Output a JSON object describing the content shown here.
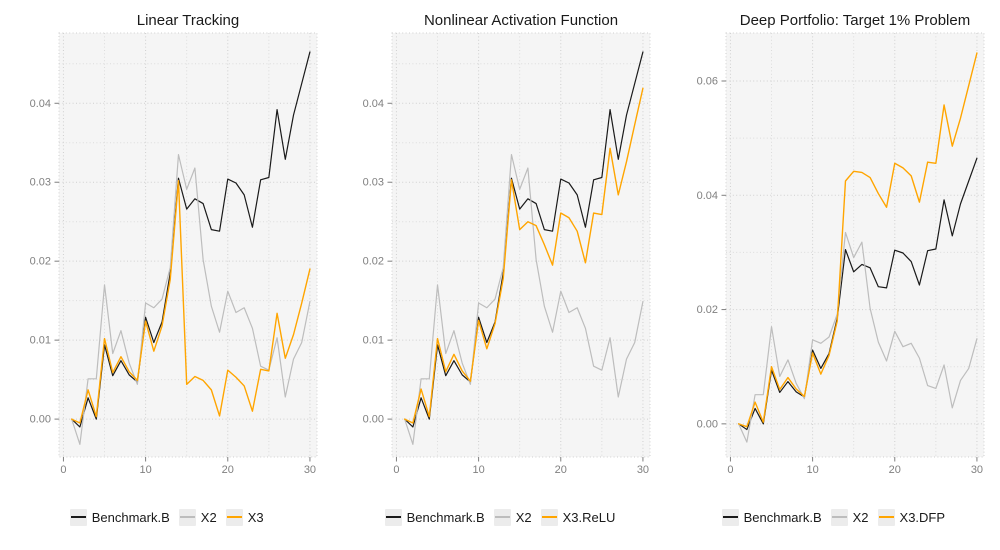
{
  "page": {
    "background": "#ffffff",
    "legend_position": "bottom"
  },
  "palette": {
    "benchmark": "#1a1a1a",
    "x2": "#bdbdbd",
    "x3": "#ffa500",
    "panel_background": "#f5f5f5",
    "grid_major": "#cfcfcf",
    "grid_minor": "#dcdcdc",
    "tick_text": "#808080"
  },
  "chart_data": [
    {
      "type": "line",
      "title": "Linear Tracking",
      "xlabel": "",
      "ylabel": "",
      "grid": "dotted",
      "legend_position": "bottom",
      "x": {
        "start": 1,
        "end": 30,
        "step": 1
      },
      "xlim": [
        -0.54,
        30.86
      ],
      "ylim": [
        -0.0048,
        0.0489
      ],
      "x_major": [
        0,
        10,
        20,
        30
      ],
      "x_labels": [
        "0",
        "10",
        "20",
        "30"
      ],
      "x_minor": [
        5,
        15,
        25
      ],
      "y_major": [
        0,
        0.01,
        0.02,
        0.03,
        0.04
      ],
      "y_labels": [
        "0.00",
        "0.01",
        "0.02",
        "0.03",
        "0.04"
      ],
      "y_minor": [
        0.005,
        0.015,
        0.025,
        0.035,
        0.045
      ],
      "series": [
        {
          "name": "Benchmark.B",
          "color": "#1a1a1a",
          "values": [
            0.0,
            -0.001,
            0.0027,
            0.0,
            0.0094,
            0.0055,
            0.0074,
            0.0056,
            0.0047,
            0.0129,
            0.0097,
            0.0123,
            0.0185,
            0.0305,
            0.0266,
            0.0279,
            0.0273,
            0.024,
            0.0238,
            0.0304,
            0.0299,
            0.0284,
            0.0243,
            0.0303,
            0.0306,
            0.0392,
            0.0329,
            0.0385,
            0.0425,
            0.0465
          ]
        },
        {
          "name": "X2",
          "color": "#bdbdbd",
          "values": [
            0.0,
            -0.0032,
            0.0051,
            0.0051,
            0.017,
            0.0083,
            0.0112,
            0.0071,
            0.0044,
            0.0147,
            0.0141,
            0.0152,
            0.0192,
            0.0335,
            0.0291,
            0.0318,
            0.0202,
            0.0143,
            0.011,
            0.0162,
            0.0135,
            0.0141,
            0.0115,
            0.0067,
            0.0062,
            0.0103,
            0.0028,
            0.0076,
            0.0097,
            0.0149
          ]
        },
        {
          "name": "X3",
          "color": "#ffa500",
          "values": [
            0.0,
            -0.0005,
            0.0037,
            0.0003,
            0.0102,
            0.0059,
            0.0079,
            0.006,
            0.0049,
            0.0124,
            0.0086,
            0.0118,
            0.0177,
            0.0302,
            0.0044,
            0.0054,
            0.0049,
            0.0037,
            0.0004,
            0.0062,
            0.0053,
            0.0042,
            0.001,
            0.0063,
            0.0061,
            0.0134,
            0.0077,
            0.0107,
            0.0147,
            0.019
          ]
        }
      ]
    },
    {
      "type": "line",
      "title": "Nonlinear Activation Function",
      "xlabel": "",
      "ylabel": "",
      "grid": "dotted",
      "legend_position": "bottom",
      "x": {
        "start": 1,
        "end": 30,
        "step": 1
      },
      "xlim": [
        -0.54,
        30.86
      ],
      "ylim": [
        -0.0048,
        0.0489
      ],
      "x_major": [
        0,
        10,
        20,
        30
      ],
      "x_labels": [
        "0",
        "10",
        "20",
        "30"
      ],
      "x_minor": [
        5,
        15,
        25
      ],
      "y_major": [
        0,
        0.01,
        0.02,
        0.03,
        0.04
      ],
      "y_labels": [
        "0.00",
        "0.01",
        "0.02",
        "0.03",
        "0.04"
      ],
      "y_minor": [
        0.005,
        0.015,
        0.025,
        0.035,
        0.045
      ],
      "series": [
        {
          "name": "Benchmark.B",
          "color": "#1a1a1a",
          "values": [
            0.0,
            -0.001,
            0.0027,
            0.0,
            0.0094,
            0.0055,
            0.0074,
            0.0056,
            0.0047,
            0.0129,
            0.0097,
            0.0123,
            0.0185,
            0.0305,
            0.0266,
            0.0279,
            0.0273,
            0.024,
            0.0238,
            0.0304,
            0.0299,
            0.0284,
            0.0243,
            0.0303,
            0.0306,
            0.0392,
            0.0329,
            0.0385,
            0.0425,
            0.0465
          ]
        },
        {
          "name": "X2",
          "color": "#bdbdbd",
          "values": [
            0.0,
            -0.0032,
            0.0051,
            0.0051,
            0.017,
            0.0083,
            0.0112,
            0.0071,
            0.0044,
            0.0147,
            0.0141,
            0.0152,
            0.0192,
            0.0335,
            0.0291,
            0.0318,
            0.0202,
            0.0143,
            0.011,
            0.0162,
            0.0135,
            0.0141,
            0.0115,
            0.0067,
            0.0062,
            0.0103,
            0.0028,
            0.0076,
            0.0097,
            0.0149
          ]
        },
        {
          "name": "X3.ReLU",
          "color": "#ffa500",
          "values": [
            0.0,
            -0.0005,
            0.0038,
            0.0003,
            0.0102,
            0.006,
            0.0082,
            0.0061,
            0.0048,
            0.0125,
            0.0089,
            0.0121,
            0.0178,
            0.0303,
            0.024,
            0.025,
            0.0245,
            0.0221,
            0.0195,
            0.0261,
            0.0255,
            0.0238,
            0.0198,
            0.0261,
            0.0259,
            0.0343,
            0.0284,
            0.0326,
            0.0373,
            0.0419
          ]
        }
      ]
    },
    {
      "type": "line",
      "title": "Deep Portfolio: Target 1% Problem",
      "xlabel": "",
      "ylabel": "",
      "grid": "dotted",
      "legend_position": "bottom",
      "x": {
        "start": 1,
        "end": 30,
        "step": 1
      },
      "xlim": [
        -0.54,
        30.86
      ],
      "ylim": [
        -0.0058,
        0.0684
      ],
      "x_major": [
        0,
        10,
        20,
        30
      ],
      "x_labels": [
        "0",
        "10",
        "20",
        "30"
      ],
      "x_minor": [
        5,
        15,
        25
      ],
      "y_major": [
        0,
        0.02,
        0.04,
        0.06
      ],
      "y_labels": [
        "0.00",
        "0.02",
        "0.04",
        "0.06"
      ],
      "y_minor": [
        0.01,
        0.03,
        0.05
      ],
      "series": [
        {
          "name": "Benchmark.B",
          "color": "#1a1a1a",
          "values": [
            0.0,
            -0.001,
            0.0027,
            0.0,
            0.0094,
            0.0055,
            0.0074,
            0.0056,
            0.0047,
            0.0129,
            0.0097,
            0.0123,
            0.0185,
            0.0305,
            0.0266,
            0.0279,
            0.0273,
            0.024,
            0.0238,
            0.0304,
            0.0299,
            0.0284,
            0.0243,
            0.0303,
            0.0306,
            0.0392,
            0.0329,
            0.0385,
            0.0425,
            0.0465
          ]
        },
        {
          "name": "X2",
          "color": "#bdbdbd",
          "values": [
            0.0,
            -0.0032,
            0.0051,
            0.0051,
            0.017,
            0.0083,
            0.0112,
            0.0071,
            0.0044,
            0.0147,
            0.0141,
            0.0152,
            0.0192,
            0.0335,
            0.0291,
            0.0318,
            0.0202,
            0.0143,
            0.011,
            0.0162,
            0.0135,
            0.0141,
            0.0115,
            0.0067,
            0.0062,
            0.0103,
            0.0028,
            0.0076,
            0.0097,
            0.0149
          ]
        },
        {
          "name": "X3.DFP",
          "color": "#ffa500",
          "values": [
            0.0,
            -0.0005,
            0.0038,
            0.0003,
            0.01,
            0.006,
            0.0081,
            0.0061,
            0.0048,
            0.0124,
            0.0087,
            0.012,
            0.018,
            0.0425,
            0.0442,
            0.044,
            0.0431,
            0.0403,
            0.0379,
            0.0456,
            0.0448,
            0.0434,
            0.0388,
            0.0458,
            0.0456,
            0.0558,
            0.0486,
            0.0535,
            0.0592,
            0.0649
          ]
        }
      ]
    }
  ]
}
